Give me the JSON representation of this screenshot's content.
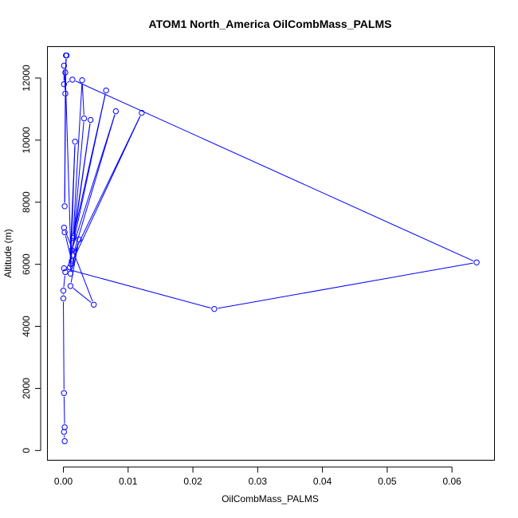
{
  "chart_data": {
    "type": "line",
    "title": "ATOM1 North_America OilCombMass_PALMS",
    "xlabel": "OilCombMass_PALMS",
    "ylabel": "Altitude (m)",
    "xlim": [
      -0.0024,
      0.0665
    ],
    "ylim": [
      -300,
      13000
    ],
    "xticks": [
      0.0,
      0.01,
      0.02,
      0.03,
      0.04,
      0.05,
      0.06
    ],
    "xtick_labels": [
      "0.00",
      "0.01",
      "0.02",
      "0.03",
      "0.04",
      "0.05",
      "0.06"
    ],
    "yticks": [
      0,
      2000,
      4000,
      6000,
      8000,
      10000,
      12000
    ],
    "ytick_labels": [
      "0",
      "2000",
      "4000",
      "6000",
      "8000",
      "10000",
      "12000"
    ],
    "grid": false,
    "series": [
      {
        "color": "#0000ff",
        "marker": "open-circle",
        "points": [
          {
            "x": 0.0002,
            "y": 300
          },
          {
            "x": 0.0001,
            "y": 600
          },
          {
            "x": 0.0002,
            "y": 750
          },
          {
            "x": 0.0001,
            "y": 1850
          },
          {
            "x": 0.0,
            "y": 4900
          },
          {
            "x": 0.0,
            "y": 5150
          },
          {
            "x": 0.0003,
            "y": 5750
          },
          {
            "x": 0.0001,
            "y": 5870
          },
          {
            "x": 0.0233,
            "y": 4560
          },
          {
            "x": 0.0638,
            "y": 6060
          },
          {
            "x": 0.0014,
            "y": 11950
          },
          {
            "x": 0.0001,
            "y": 11800
          },
          {
            "x": 0.0001,
            "y": 12400
          },
          {
            "x": 0.0003,
            "y": 11500
          },
          {
            "x": 0.0002,
            "y": 7870
          },
          {
            "x": 0.0004,
            "y": 12730
          },
          {
            "x": 0.0005,
            "y": 12730
          },
          {
            "x": 0.0003,
            "y": 12180
          },
          {
            "x": 0.0012,
            "y": 6000
          },
          {
            "x": 0.0121,
            "y": 10880
          },
          {
            "x": 0.0015,
            "y": 6300
          },
          {
            "x": 0.0081,
            "y": 10930
          },
          {
            "x": 0.0013,
            "y": 6450
          },
          {
            "x": 0.0066,
            "y": 11600
          },
          {
            "x": 0.0015,
            "y": 6850
          },
          {
            "x": 0.0029,
            "y": 11930
          },
          {
            "x": 0.0032,
            "y": 10700
          },
          {
            "x": 0.0016,
            "y": 6900
          },
          {
            "x": 0.0042,
            "y": 10650
          },
          {
            "x": 0.001,
            "y": 5900
          },
          {
            "x": 0.0018,
            "y": 9950
          },
          {
            "x": 0.0011,
            "y": 5700
          },
          {
            "x": 0.0024,
            "y": 6800
          },
          {
            "x": 0.0011,
            "y": 5300
          },
          {
            "x": 0.0047,
            "y": 4700
          },
          {
            "x": 0.0001,
            "y": 7180
          },
          {
            "x": 0.0002,
            "y": 7030
          },
          {
            "x": 0.0013,
            "y": 6100
          }
        ]
      }
    ]
  }
}
